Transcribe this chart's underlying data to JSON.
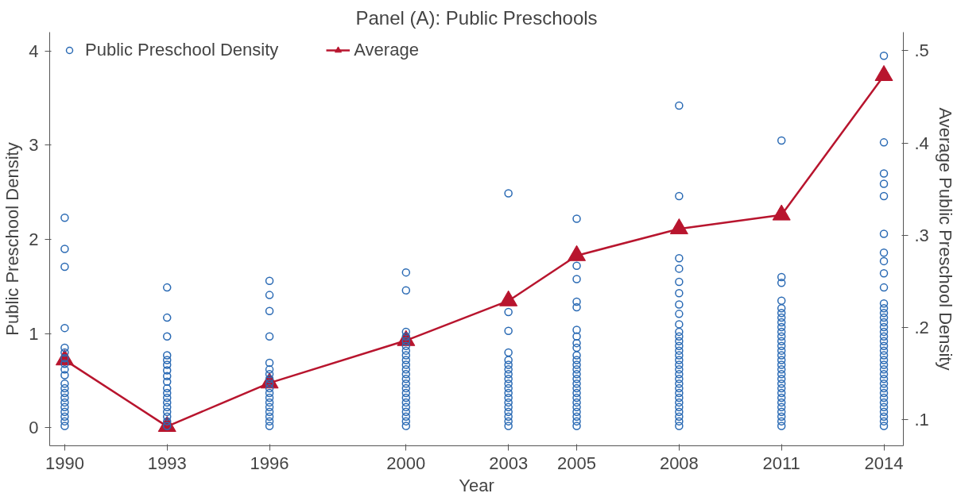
{
  "chart_data": {
    "type": "scatter",
    "title": "Panel (A): Public Preschools",
    "xlabel": "Year",
    "ylabel": "Public Preschool Density",
    "y2label": "Average Public Preschool Density",
    "xlim": [
      1989.56,
      2014.57
    ],
    "xticks": [
      1990,
      1993,
      1996,
      2000,
      2003,
      2005,
      2008,
      2011,
      2014
    ],
    "ylim": [
      -0.19,
      4.2
    ],
    "yticks": [
      0,
      1,
      2,
      3,
      4
    ],
    "y2lim": [
      0.072,
      0.52
    ],
    "y2ticks": [
      {
        "value": 0.1,
        "label": ".1"
      },
      {
        "value": 0.2,
        "label": ".2"
      },
      {
        "value": 0.3,
        "label": ".3"
      },
      {
        "value": 0.4,
        "label": ".4"
      },
      {
        "value": 0.5,
        "label": ".5"
      }
    ],
    "grid": false,
    "legend": "top left",
    "series": [
      {
        "name": "Public Preschool Density",
        "marker": "circle",
        "color": "#2a6ab4",
        "x": [
          1990,
          1990,
          1990,
          1990,
          1990,
          1990,
          1990,
          1990,
          1990,
          1990,
          1990,
          1990,
          1990,
          1990,
          1990,
          1990,
          1990,
          1990,
          1990,
          1990,
          1993,
          1993,
          1993,
          1993,
          1993,
          1993,
          1993,
          1993,
          1993,
          1993,
          1993,
          1993,
          1993,
          1993,
          1993,
          1993,
          1993,
          1993,
          1996,
          1996,
          1996,
          1996,
          1996,
          1996,
          1996,
          1996,
          1996,
          1996,
          1996,
          1996,
          1996,
          1996,
          1996,
          1996,
          1996,
          1996,
          2000,
          2000,
          2000,
          2000,
          2000,
          2000,
          2000,
          2000,
          2000,
          2000,
          2000,
          2000,
          2000,
          2000,
          2000,
          2000,
          2000,
          2000,
          2000,
          2000,
          2000,
          2000,
          2000,
          2003,
          2003,
          2003,
          2003,
          2003,
          2003,
          2003,
          2003,
          2003,
          2003,
          2003,
          2003,
          2003,
          2003,
          2003,
          2003,
          2003,
          2003,
          2003,
          2005,
          2005,
          2005,
          2005,
          2005,
          2005,
          2005,
          2005,
          2005,
          2005,
          2005,
          2005,
          2005,
          2005,
          2005,
          2005,
          2005,
          2005,
          2005,
          2005,
          2005,
          2005,
          2005,
          2005,
          2005,
          2008,
          2008,
          2008,
          2008,
          2008,
          2008,
          2008,
          2008,
          2008,
          2008,
          2008,
          2008,
          2008,
          2008,
          2008,
          2008,
          2008,
          2008,
          2008,
          2008,
          2008,
          2008,
          2008,
          2008,
          2008,
          2008,
          2008,
          2008,
          2008,
          2008,
          2011,
          2011,
          2011,
          2011,
          2011,
          2011,
          2011,
          2011,
          2011,
          2011,
          2011,
          2011,
          2011,
          2011,
          2011,
          2011,
          2011,
          2011,
          2011,
          2011,
          2011,
          2011,
          2011,
          2011,
          2011,
          2011,
          2011,
          2011,
          2011,
          2011,
          2014,
          2014,
          2014,
          2014,
          2014,
          2014,
          2014,
          2014,
          2014,
          2014,
          2014,
          2014,
          2014,
          2014,
          2014,
          2014,
          2014,
          2014,
          2014,
          2014,
          2014,
          2014,
          2014,
          2014,
          2014,
          2014,
          2014,
          2014,
          2014,
          2014,
          2014,
          2014,
          2014,
          2014,
          2014,
          2014,
          2014
        ],
        "values": [
          0.02,
          0.07,
          0.12,
          0.17,
          0.22,
          0.27,
          0.32,
          0.37,
          0.42,
          0.47,
          0.56,
          0.62,
          0.68,
          0.74,
          0.8,
          0.85,
          1.06,
          1.71,
          1.9,
          2.23,
          0.02,
          0.07,
          0.12,
          0.17,
          0.22,
          0.27,
          0.32,
          0.37,
          0.42,
          0.49,
          0.55,
          0.61,
          0.67,
          0.72,
          0.77,
          0.97,
          1.17,
          1.49,
          0.02,
          0.07,
          0.12,
          0.17,
          0.22,
          0.27,
          0.32,
          0.37,
          0.42,
          0.47,
          0.52,
          0.57,
          0.62,
          0.69,
          0.97,
          1.24,
          1.41,
          1.56,
          0.02,
          0.07,
          0.12,
          0.17,
          0.22,
          0.27,
          0.32,
          0.37,
          0.42,
          0.47,
          0.52,
          0.57,
          0.62,
          0.67,
          0.72,
          0.77,
          0.82,
          0.87,
          0.92,
          0.97,
          1.02,
          1.46,
          1.65,
          0.02,
          0.07,
          0.12,
          0.17,
          0.22,
          0.27,
          0.32,
          0.37,
          0.42,
          0.47,
          0.52,
          0.57,
          0.62,
          0.67,
          0.72,
          0.8,
          1.03,
          1.23,
          2.49,
          0.02,
          0.07,
          0.12,
          0.17,
          0.22,
          0.27,
          0.32,
          0.37,
          0.42,
          0.47,
          0.52,
          0.57,
          0.62,
          0.67,
          0.72,
          0.77,
          0.85,
          0.9,
          0.97,
          1.04,
          1.28,
          1.34,
          1.58,
          1.72,
          2.22,
          0.02,
          0.07,
          0.12,
          0.17,
          0.22,
          0.27,
          0.32,
          0.37,
          0.42,
          0.47,
          0.52,
          0.57,
          0.62,
          0.67,
          0.72,
          0.77,
          0.82,
          0.87,
          0.92,
          0.97,
          1.02,
          1.1,
          1.21,
          1.31,
          1.43,
          1.55,
          1.69,
          1.8,
          2.46,
          3.42,
          0.02,
          0.07,
          0.12,
          0.17,
          0.22,
          0.27,
          0.32,
          0.37,
          0.42,
          0.47,
          0.52,
          0.57,
          0.62,
          0.67,
          0.72,
          0.77,
          0.82,
          0.87,
          0.92,
          0.97,
          1.02,
          1.07,
          1.12,
          1.17,
          1.22,
          1.27,
          1.35,
          1.54,
          1.6,
          3.05,
          0.02,
          0.07,
          0.12,
          0.17,
          0.22,
          0.27,
          0.32,
          0.37,
          0.42,
          0.47,
          0.52,
          0.57,
          0.62,
          0.67,
          0.72,
          0.77,
          0.82,
          0.87,
          0.92,
          0.97,
          1.02,
          1.07,
          1.12,
          1.17,
          1.22,
          1.27,
          1.32,
          1.49,
          1.64,
          1.77,
          1.86,
          2.06,
          2.46,
          2.59,
          2.7,
          3.03,
          3.95
        ]
      },
      {
        "name": "Average",
        "type": "line",
        "axis": "y2",
        "marker": "triangle",
        "line_style": "solid",
        "color": "#b8152e",
        "x": [
          1990,
          1993,
          1996,
          2000,
          2003,
          2005,
          2008,
          2011,
          2014
        ],
        "values": [
          0.165,
          0.093,
          0.14,
          0.186,
          0.229,
          0.278,
          0.307,
          0.322,
          0.473
        ]
      }
    ]
  }
}
